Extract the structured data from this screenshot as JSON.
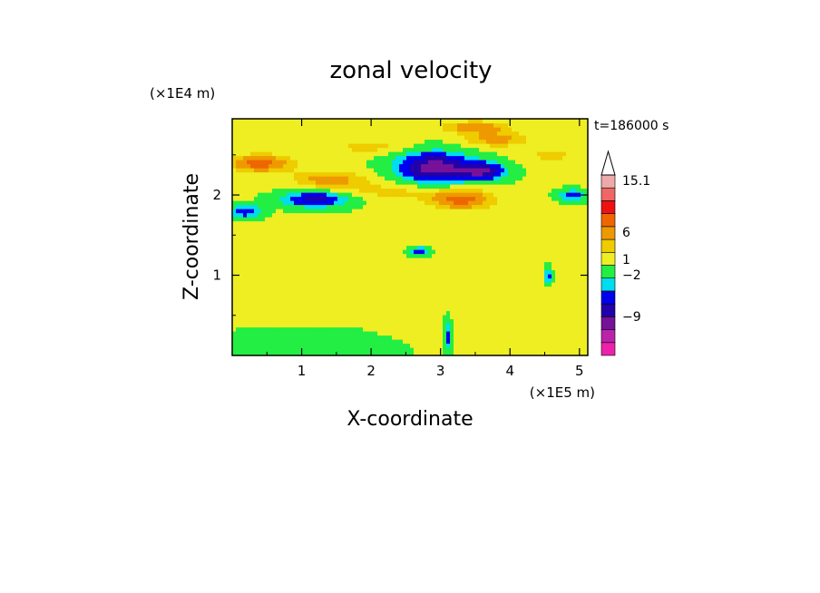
{
  "chart_data": {
    "type": "heatmap",
    "title": "zonal velocity",
    "xlabel": "X-coordinate",
    "ylabel": "Z-coordinate",
    "x_multiplier": "(×1E5 m)",
    "y_multiplier": "(×1E4 m)",
    "timestamp": "t=186000 s",
    "xlim": [
      0,
      5.12
    ],
    "ylim": [
      0,
      2.95
    ],
    "x_ticks": [
      1,
      2,
      3,
      4,
      5
    ],
    "y_ticks": [
      1,
      2
    ],
    "x_tick_labels": [
      "1",
      "2",
      "3",
      "4",
      "5"
    ],
    "y_tick_labels": [
      "1",
      "2"
    ],
    "colorbar": {
      "colors": [
        "#ee22aa",
        "#bb22aa",
        "#771199",
        "#2200aa",
        "#0000ee",
        "#00ddee",
        "#22ee44",
        "#eeee22",
        "#eecc00",
        "#ee9900",
        "#ee6600",
        "#ee1111",
        "#ee6666",
        "#eeaaaa",
        "#ffffff"
      ],
      "labels": [
        "-9",
        "-2",
        "1",
        "6",
        "15.1"
      ],
      "label_levels": [
        -9,
        -2,
        1,
        6,
        15.1
      ]
    },
    "field": {
      "background_level": 0,
      "features": [
        {
          "x": 1.1,
          "z": 0.08,
          "rx": 1.2,
          "rz": 0.3,
          "u": -0.5
        },
        {
          "x": 0.6,
          "z": 0.45,
          "rx": 0.8,
          "rz": 0.12,
          "u": 0.5
        },
        {
          "x": 1.5,
          "z": 0.8,
          "rx": 0.9,
          "rz": 0.5,
          "u": 0.5
        },
        {
          "x": 2.5,
          "z": 0.5,
          "rx": 0.7,
          "rz": 0.3,
          "u": 0.5
        },
        {
          "x": 3.2,
          "z": 1.1,
          "rx": 0.6,
          "rz": 0.35,
          "u": 0.5
        },
        {
          "x": 0.3,
          "z": 1.8,
          "rx": 0.4,
          "rz": 0.1,
          "u": 0.5
        },
        {
          "x": 2.0,
          "z": 1.55,
          "rx": 0.9,
          "rz": 0.1,
          "u": 0.5
        },
        {
          "x": 0.4,
          "z": 2.4,
          "rx": 0.5,
          "rz": 0.12,
          "u": 3.5
        },
        {
          "x": 1.4,
          "z": 2.2,
          "rx": 0.6,
          "rz": 0.12,
          "u": 2.5
        },
        {
          "x": 1.2,
          "z": 1.95,
          "rx": 0.5,
          "rz": 0.1,
          "u": -4
        },
        {
          "x": 0.2,
          "z": 1.8,
          "rx": 0.25,
          "rz": 0.08,
          "u": -3.5
        },
        {
          "x": 2.3,
          "z": 2.05,
          "rx": 0.8,
          "rz": 0.12,
          "u": 1.5
        },
        {
          "x": 2.0,
          "z": 2.6,
          "rx": 0.7,
          "rz": 0.1,
          "u": 1.5
        },
        {
          "x": 2.9,
          "z": 2.35,
          "rx": 0.55,
          "rz": 0.2,
          "u": -6
        },
        {
          "x": 3.6,
          "z": 2.3,
          "rx": 0.35,
          "rz": 0.12,
          "u": -5
        },
        {
          "x": 3.3,
          "z": 1.95,
          "rx": 0.5,
          "rz": 0.14,
          "u": 3.5
        },
        {
          "x": 3.8,
          "z": 2.7,
          "rx": 0.5,
          "rz": 0.1,
          "u": 2.5
        },
        {
          "x": 4.6,
          "z": 2.5,
          "rx": 0.4,
          "rz": 0.12,
          "u": 1.5
        },
        {
          "x": 4.9,
          "z": 2.0,
          "rx": 0.2,
          "rz": 0.07,
          "u": -3
        },
        {
          "x": 2.7,
          "z": 1.3,
          "rx": 0.15,
          "rz": 0.06,
          "u": -3
        },
        {
          "x": 4.3,
          "z": 0.55,
          "rx": 0.35,
          "rz": 0.5,
          "u": 0.5
        },
        {
          "x": 3.1,
          "z": 0.25,
          "rx": 0.05,
          "rz": 0.2,
          "u": -2.5
        },
        {
          "x": 4.55,
          "z": 1.0,
          "rx": 0.05,
          "rz": 0.1,
          "u": -3
        },
        {
          "x": 3.5,
          "z": 2.85,
          "rx": 0.5,
          "rz": 0.08,
          "u": 3
        }
      ]
    }
  }
}
